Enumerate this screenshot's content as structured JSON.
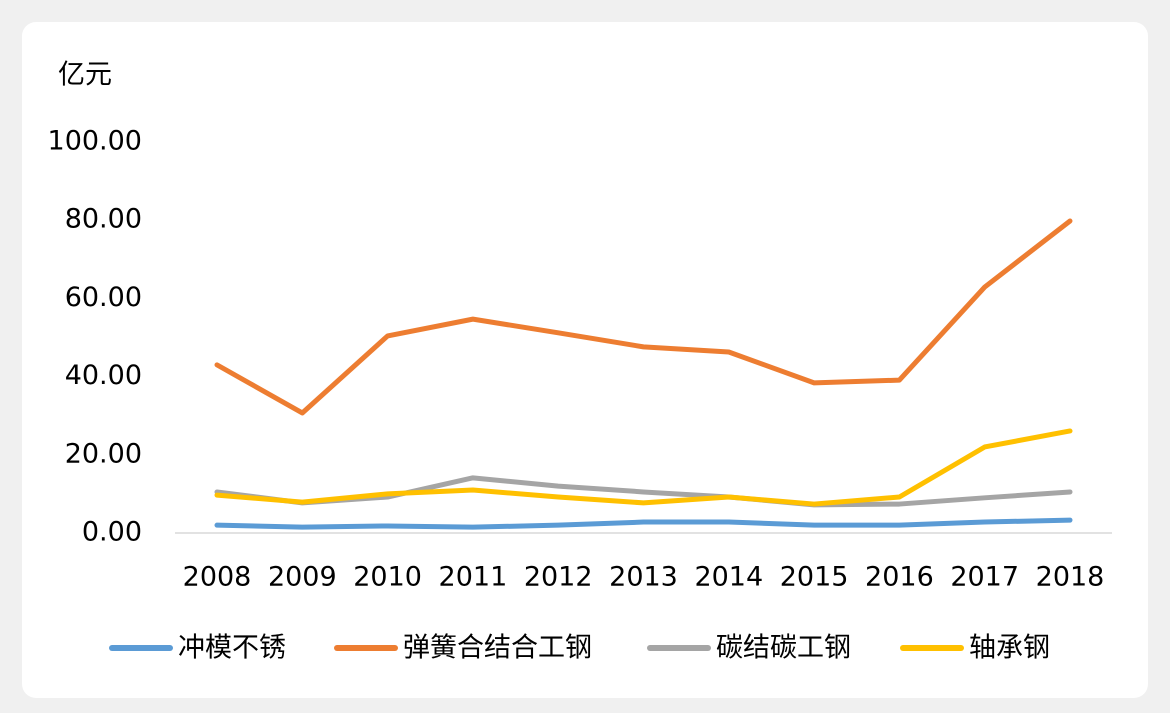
{
  "chart_data": {
    "type": "line",
    "unit_label": "亿元",
    "categories": [
      "2008",
      "2009",
      "2010",
      "2011",
      "2012",
      "2013",
      "2014",
      "2015",
      "2016",
      "2017",
      "2018"
    ],
    "series": [
      {
        "name": "冲模不锈",
        "color": "#5b9bd5",
        "values": [
          2,
          1.5,
          1.8,
          1.5,
          2,
          2.8,
          2.8,
          2,
          2,
          2.8,
          3.3
        ]
      },
      {
        "name": "弹簧合结合工钢",
        "color": "#ed7d31",
        "values": [
          43,
          30.7,
          50.4,
          54.7,
          51.2,
          47.6,
          46.3,
          38.4,
          39.1,
          62.9,
          79.8
        ]
      },
      {
        "name": "碳结碳工钢",
        "color": "#a5a5a5",
        "values": [
          10.5,
          7.7,
          9.2,
          14.1,
          12,
          10.5,
          9.2,
          7.2,
          7.4,
          9,
          10.5
        ]
      },
      {
        "name": "轴承钢",
        "color": "#ffc000",
        "values": [
          9.7,
          7.9,
          10,
          11,
          9.2,
          7.7,
          9.2,
          7.4,
          9.2,
          22,
          26.1
        ]
      }
    ],
    "ylim": [
      0,
      100
    ],
    "yticks": [
      {
        "value": 0,
        "label": "0.00"
      },
      {
        "value": 20,
        "label": "20.00"
      },
      {
        "value": 40,
        "label": "40.00"
      },
      {
        "value": 60,
        "label": "60.00"
      },
      {
        "value": 80,
        "label": "80.00"
      },
      {
        "value": 100,
        "label": "100.00"
      }
    ],
    "grid": false,
    "legend": "bottom"
  }
}
